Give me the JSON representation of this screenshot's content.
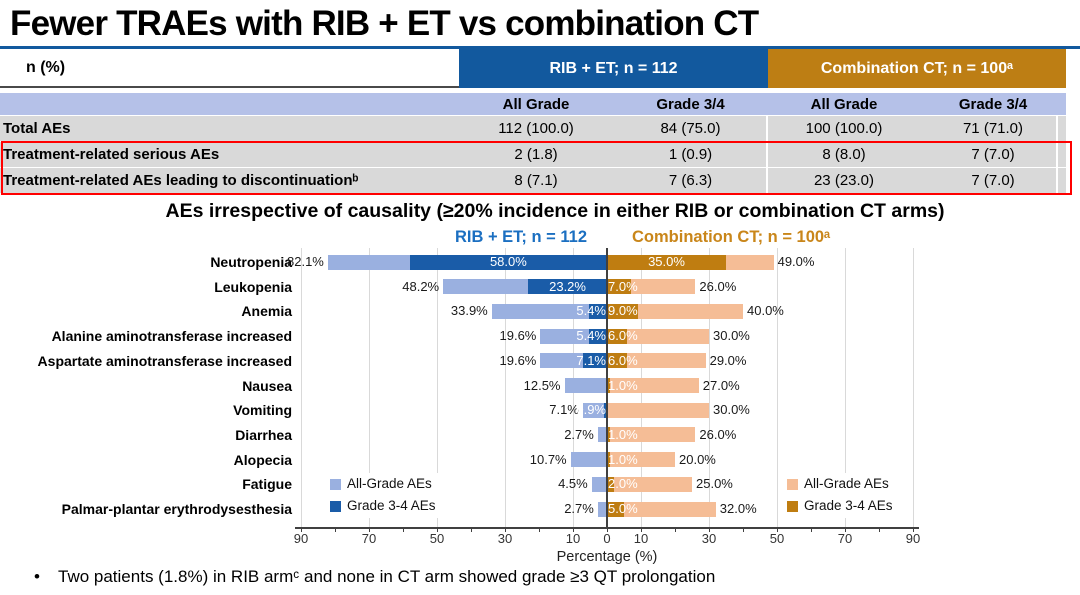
{
  "title": "Fewer TRAEs with RIB + ET vs combination CT",
  "colors": {
    "rule_blue": "#12599E",
    "header_blue": "#12599E",
    "header_orange": "#BD7E14",
    "subheader_bg": "#B5C1E8",
    "row_bg": "#D9D9D9",
    "highlight_red": "#FF0000",
    "bar_light_blue": "#9AB0E0",
    "bar_dark_blue": "#1A5CA8",
    "bar_light_orange": "#F5BD96",
    "bar_dark_orange": "#BF7D11",
    "arm_text_blue": "#1B6FC1",
    "arm_text_orange": "#C9861A"
  },
  "table": {
    "corner_label": "n (%)",
    "groups": [
      {
        "label": "RIB + ET; n = 112"
      },
      {
        "label": "Combination CT; n = 100ᵃ"
      }
    ],
    "subheaders": [
      "All Grade",
      "Grade 3/4",
      "All Grade",
      "Grade 3/4"
    ],
    "rows": [
      {
        "label": "Total AEs",
        "values": [
          "112 (100.0)",
          "84 (75.0)",
          "100 (100.0)",
          "71 (71.0)"
        ],
        "highlighted": false
      },
      {
        "label": "Treatment-related serious AEs",
        "values": [
          "2 (1.8)",
          "1 (0.9)",
          "8 (8.0)",
          "7 (7.0)"
        ],
        "highlighted": true
      },
      {
        "label": "Treatment-related AEs leading to discontinuationᵇ",
        "values": [
          "8 (7.1)",
          "7 (6.3)",
          "23 (23.0)",
          "7 (7.0)"
        ],
        "highlighted": true
      }
    ]
  },
  "chart_data": {
    "type": "bar",
    "variant": "diverging-horizontal-stacked",
    "title": "AEs irrespective of causality (≥20% incidence in either RIB or combination CT arms)",
    "arms": {
      "left": {
        "label": "RIB + ET; n = 112"
      },
      "right": {
        "label": "Combination CT; n = 100ᵃ"
      }
    },
    "categories": [
      "Neutropenia",
      "Leukopenia",
      "Anemia",
      "Alanine aminotransferase increased",
      "Aspartate aminotransferase increased",
      "Nausea",
      "Vomiting",
      "Diarrhea",
      "Alopecia",
      "Fatigue",
      "Palmar-plantar erythrodysesthesia"
    ],
    "series": [
      {
        "name": "RIB + ET All-Grade AEs",
        "side": "left",
        "values": [
          82.1,
          48.2,
          33.9,
          19.6,
          19.6,
          12.5,
          7.1,
          2.7,
          10.7,
          4.5,
          2.7
        ]
      },
      {
        "name": "RIB + ET Grade 3-4 AEs",
        "side": "left",
        "values": [
          58.0,
          23.2,
          5.4,
          5.4,
          7.1,
          0,
          0.9,
          0,
          0,
          0,
          0
        ]
      },
      {
        "name": "Combination CT Grade 3-4 AEs",
        "side": "right",
        "values": [
          35.0,
          7.0,
          9.0,
          6.0,
          6.0,
          1.0,
          0,
          1.0,
          1.0,
          2.0,
          5.0
        ]
      },
      {
        "name": "Combination CT All-Grade AEs",
        "side": "right",
        "values": [
          49.0,
          26.0,
          40.0,
          30.0,
          29.0,
          27.0,
          30.0,
          26.0,
          20.0,
          25.0,
          32.0
        ]
      }
    ],
    "xlabel": "Percentage (%)",
    "x_ticks": [
      -90,
      -70,
      -50,
      -30,
      -10,
      0,
      10,
      30,
      50,
      70,
      90
    ],
    "xlim": [
      -90,
      90
    ],
    "grid": true,
    "legend": {
      "all_grade": "All-Grade AEs",
      "grade34": "Grade 3-4 AEs"
    }
  },
  "footnote": {
    "bullet": "•",
    "text": "Two patients (1.8%) in RIB armᶜ and none in CT arm showed grade ≥3 QT prolongation"
  }
}
